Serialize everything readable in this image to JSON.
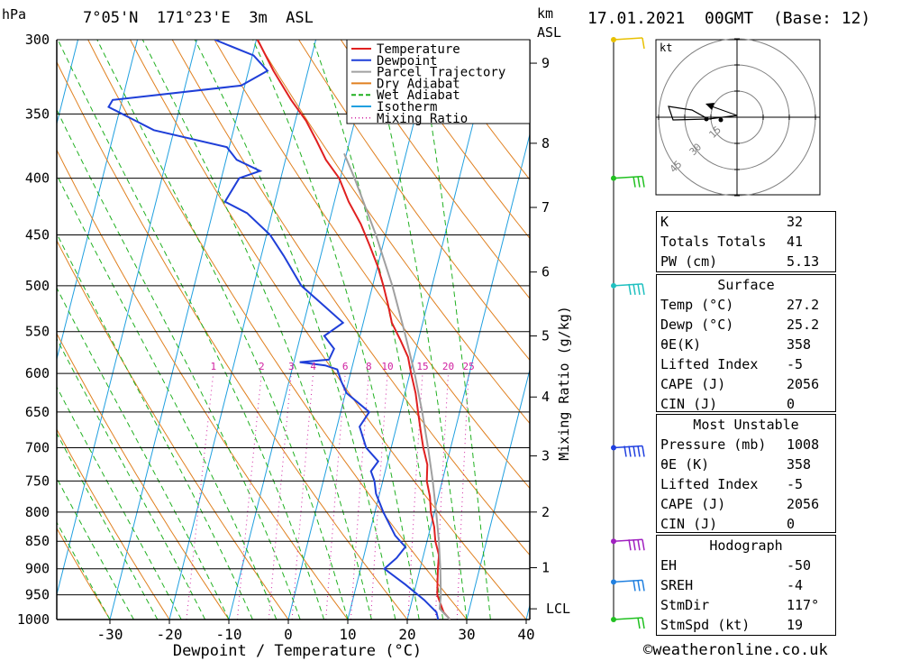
{
  "header": {
    "location": "7°05'N  171°23'E  3m  ASL",
    "datetime": "17.01.2021  00GMT  (Base: 12)",
    "pressure_unit": "hPa",
    "height_unit_1": "km",
    "height_unit_2": "ASL"
  },
  "footer": {
    "credit": "©weatheronline.co.uk"
  },
  "chart_data": {
    "type": "skew-t",
    "xlabel": "Dewpoint / Temperature (°C)",
    "ylabel_right": "Mixing Ratio (g/kg)",
    "x_ticks": [
      "-30",
      "-20",
      "-10",
      "0",
      "10",
      "20",
      "30",
      "40"
    ],
    "x_tick_values": [
      -30,
      -20,
      -10,
      0,
      10,
      20,
      30,
      40
    ],
    "xlim": [
      -40,
      40
    ],
    "ylim_hpa": [
      1000,
      300
    ],
    "p_ticks": [
      "300",
      "350",
      "400",
      "450",
      "500",
      "550",
      "600",
      "650",
      "700",
      "750",
      "800",
      "850",
      "900",
      "950",
      "1000"
    ],
    "p_tick_values": [
      300,
      350,
      400,
      450,
      500,
      550,
      600,
      650,
      700,
      750,
      800,
      850,
      900,
      950,
      1000
    ],
    "km_ticks": [
      {
        "label": "9",
        "p": 315
      },
      {
        "label": "8",
        "p": 372
      },
      {
        "label": "7",
        "p": 425
      },
      {
        "label": "6",
        "p": 486
      },
      {
        "label": "5",
        "p": 555
      },
      {
        "label": "4",
        "p": 630
      },
      {
        "label": "3",
        "p": 712
      },
      {
        "label": "2",
        "p": 800
      },
      {
        "label": "1",
        "p": 898
      }
    ],
    "lcl": {
      "label": "LCL",
      "p": 978
    },
    "mixing_ratio_labels": [
      {
        "label": "1",
        "g": 1
      },
      {
        "label": "2",
        "g": 2
      },
      {
        "label": "3",
        "g": 3
      },
      {
        "label": "4",
        "g": 4
      },
      {
        "label": "6",
        "g": 6
      },
      {
        "label": "8",
        "g": 8
      },
      {
        "label": "10",
        "g": 10
      },
      {
        "label": "15",
        "g": 15
      },
      {
        "label": "20",
        "g": 20
      },
      {
        "label": "25",
        "g": 25
      }
    ],
    "legend": [
      {
        "name": "Temperature",
        "color": "#e02020",
        "style": "solid"
      },
      {
        "name": "Dewpoint",
        "color": "#1f3fd8",
        "style": "solid"
      },
      {
        "name": "Parcel Trajectory",
        "color": "#a0a0a0",
        "style": "solid"
      },
      {
        "name": "Dry Adiabat",
        "color": "#e08020",
        "style": "solid"
      },
      {
        "name": "Wet Adiabat",
        "color": "#20b020",
        "style": "dashed"
      },
      {
        "name": "Isotherm",
        "color": "#20a0e0",
        "style": "solid"
      },
      {
        "name": "Mixing Ratio",
        "color": "#d020a0",
        "style": "dotted"
      }
    ],
    "series": [
      {
        "name": "Temperature",
        "points": [
          [
            1000,
            27.2
          ],
          [
            985,
            25.8
          ],
          [
            950,
            24.0
          ],
          [
            925,
            23.5
          ],
          [
            900,
            23.0
          ],
          [
            875,
            22.6
          ],
          [
            850,
            21.4
          ],
          [
            825,
            20.6
          ],
          [
            800,
            19.4
          ],
          [
            775,
            18.6
          ],
          [
            750,
            17.4
          ],
          [
            725,
            16.8
          ],
          [
            700,
            15.4
          ],
          [
            675,
            14.2
          ],
          [
            650,
            13.0
          ],
          [
            625,
            11.8
          ],
          [
            600,
            10.2
          ],
          [
            580,
            9.0
          ],
          [
            560,
            7.0
          ],
          [
            540,
            4.8
          ],
          [
            520,
            3.4
          ],
          [
            500,
            1.8
          ],
          [
            480,
            0.0
          ],
          [
            460,
            -2.2
          ],
          [
            440,
            -4.6
          ],
          [
            420,
            -7.6
          ],
          [
            400,
            -10.2
          ],
          [
            385,
            -13.2
          ],
          [
            370,
            -15.6
          ],
          [
            355,
            -18.2
          ],
          [
            340,
            -21.6
          ],
          [
            320,
            -25.8
          ],
          [
            300,
            -29.8
          ]
        ]
      },
      {
        "name": "Dewpoint",
        "points": [
          [
            1000,
            25.2
          ],
          [
            985,
            24.6
          ],
          [
            960,
            22.0
          ],
          [
            930,
            18.2
          ],
          [
            900,
            14.0
          ],
          [
            880,
            15.6
          ],
          [
            860,
            16.6
          ],
          [
            840,
            14.4
          ],
          [
            800,
            11.4
          ],
          [
            770,
            9.4
          ],
          [
            750,
            8.6
          ],
          [
            735,
            7.6
          ],
          [
            720,
            8.4
          ],
          [
            700,
            5.8
          ],
          [
            670,
            3.8
          ],
          [
            650,
            4.8
          ],
          [
            640,
            3.0
          ],
          [
            625,
            0.2
          ],
          [
            610,
            -1.2
          ],
          [
            595,
            -2.4
          ],
          [
            590,
            -4.6
          ],
          [
            586,
            -9.0
          ],
          [
            583,
            -4.2
          ],
          [
            570,
            -3.8
          ],
          [
            555,
            -6.0
          ],
          [
            540,
            -3.4
          ],
          [
            520,
            -7.6
          ],
          [
            500,
            -12.0
          ],
          [
            470,
            -16.2
          ],
          [
            450,
            -19.4
          ],
          [
            430,
            -24.2
          ],
          [
            420,
            -28.4
          ],
          [
            400,
            -27.0
          ],
          [
            394,
            -23.8
          ],
          [
            385,
            -28.2
          ],
          [
            375,
            -30.4
          ],
          [
            362,
            -43.4
          ],
          [
            345,
            -52.0
          ],
          [
            340,
            -51.6
          ],
          [
            330,
            -30.6
          ],
          [
            320,
            -26.8
          ],
          [
            310,
            -29.8
          ],
          [
            300,
            -37.0
          ]
        ]
      },
      {
        "name": "Parcel Trajectory",
        "points": [
          [
            1000,
            27.2
          ],
          [
            978,
            25.0
          ],
          [
            950,
            24.6
          ],
          [
            900,
            23.4
          ],
          [
            850,
            22.0
          ],
          [
            800,
            20.3
          ],
          [
            750,
            18.4
          ],
          [
            700,
            16.2
          ],
          [
            650,
            13.7
          ],
          [
            600,
            10.8
          ],
          [
            550,
            7.3
          ],
          [
            500,
            3.3
          ],
          [
            450,
            -1.6
          ],
          [
            400,
            -7.6
          ],
          [
            380,
            -10.4
          ]
        ]
      }
    ],
    "hodograph": {
      "unit": "kt",
      "ring_labels": [
        "15",
        "30",
        "45"
      ],
      "ring_values": [
        15,
        30,
        45
      ]
    },
    "wind_profile": [
      {
        "p": 300,
        "color": "#e8c000",
        "speed_kt": 5
      },
      {
        "p": 400,
        "color": "#20c020",
        "speed_kt": 15
      },
      {
        "p": 500,
        "color": "#20c0c0",
        "speed_kt": 20
      },
      {
        "p": 700,
        "color": "#2040e0",
        "speed_kt": 25
      },
      {
        "p": 850,
        "color": "#a020c0",
        "speed_kt": 20
      },
      {
        "p": 925,
        "color": "#2080e0",
        "speed_kt": 15
      },
      {
        "p": 1000,
        "color": "#20c020",
        "speed_kt": 10
      }
    ]
  },
  "indices": {
    "general": [
      {
        "k": "K",
        "v": "32"
      },
      {
        "k": "Totals Totals",
        "v": "41"
      },
      {
        "k": "PW (cm)",
        "v": "5.13"
      }
    ],
    "surface_title": "Surface",
    "surface": [
      {
        "k": "Temp (°C)",
        "v": "27.2"
      },
      {
        "k": "Dewp (°C)",
        "v": "25.2"
      },
      {
        "k": "θE(K)",
        "v": "358"
      },
      {
        "k": "Lifted Index",
        "v": "-5"
      },
      {
        "k": "CAPE (J)",
        "v": "2056"
      },
      {
        "k": "CIN (J)",
        "v": "0"
      }
    ],
    "mu_title": "Most Unstable",
    "mu": [
      {
        "k": "Pressure (mb)",
        "v": "1008"
      },
      {
        "k": "θE (K)",
        "v": "358"
      },
      {
        "k": "Lifted Index",
        "v": "-5"
      },
      {
        "k": "CAPE (J)",
        "v": "2056"
      },
      {
        "k": "CIN (J)",
        "v": "0"
      }
    ],
    "hodo_title": "Hodograph",
    "hodo": [
      {
        "k": "EH",
        "v": "-50"
      },
      {
        "k": "SREH",
        "v": "-4"
      },
      {
        "k": "StmDir",
        "v": "117°"
      },
      {
        "k": "StmSpd (kt)",
        "v": "19"
      }
    ]
  }
}
